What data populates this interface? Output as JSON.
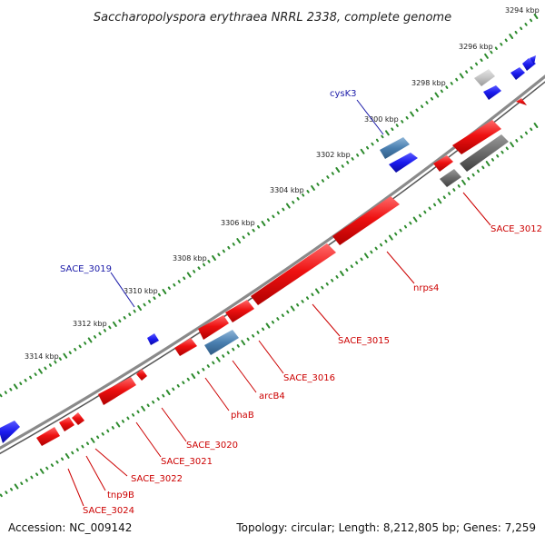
{
  "map": {
    "title": "Saccharopolyspora erythraea NRRL 2338, complete genome",
    "colors": {
      "backbone": "#8a8a8a",
      "tick_dots": "#2e8b2e",
      "cds_forward": "#ee1111",
      "cds_reverse_blue": "#1a1aee",
      "rrna_steel": "#4a7fb0",
      "pseudo_grey": "#6a6a6a",
      "label_red": "#cc0000",
      "label_blue": "#1a1aa8"
    },
    "tick_labels": [
      {
        "name": "tick-3294",
        "text": "3294 kbp"
      },
      {
        "name": "tick-3296",
        "text": "3296 kbp"
      },
      {
        "name": "tick-3298",
        "text": "3298 kbp"
      },
      {
        "name": "tick-3300",
        "text": "3300 kbp"
      },
      {
        "name": "tick-3302",
        "text": "3302 kbp"
      },
      {
        "name": "tick-3304",
        "text": "3304 kbp"
      },
      {
        "name": "tick-3306",
        "text": "3306 kbp"
      },
      {
        "name": "tick-3308",
        "text": "3308 kbp"
      },
      {
        "name": "tick-3310",
        "text": "3310 kbp"
      },
      {
        "name": "tick-3312",
        "text": "3312 kbp"
      },
      {
        "name": "tick-3314",
        "text": "3314 kbp"
      }
    ],
    "gene_labels": [
      {
        "name": "label-cysk3",
        "text": "cysK3",
        "color": "blue"
      },
      {
        "name": "label-sace3019",
        "text": "SACE_3019",
        "color": "blue"
      },
      {
        "name": "label-sace3012",
        "text": "SACE_3012",
        "color": "red"
      },
      {
        "name": "label-nrps4",
        "text": "nrps4",
        "color": "red"
      },
      {
        "name": "label-sace3015",
        "text": "SACE_3015",
        "color": "red"
      },
      {
        "name": "label-sace3016",
        "text": "SACE_3016",
        "color": "red"
      },
      {
        "name": "label-arcb4",
        "text": "arcB4",
        "color": "red"
      },
      {
        "name": "label-phab",
        "text": "phaB",
        "color": "red"
      },
      {
        "name": "label-sace3020",
        "text": "SACE_3020",
        "color": "red"
      },
      {
        "name": "label-sace3021",
        "text": "SACE_3021",
        "color": "red"
      },
      {
        "name": "label-sace3022",
        "text": "SACE_3022",
        "color": "red"
      },
      {
        "name": "label-tnp9b",
        "text": "tnp9B",
        "color": "red"
      },
      {
        "name": "label-sace3024",
        "text": "SACE_3024",
        "color": "red"
      }
    ]
  },
  "footer": {
    "accession": "Accession: NC_009142",
    "genome_info": "Topology: circular; Length: 8,212,805 bp; Genes: 7,259"
  }
}
